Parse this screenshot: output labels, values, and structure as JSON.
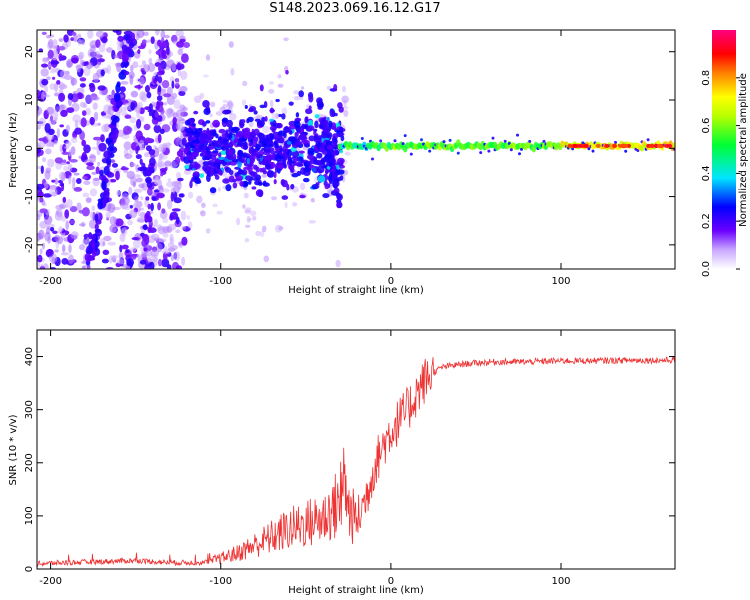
{
  "title": "S148.2023.069.16.12.G17",
  "chart_data": [
    {
      "type": "heatmap",
      "xlabel": "Height of straight line (km)",
      "ylabel": "Frequency (Hz)",
      "xlim": [
        -208,
        167
      ],
      "ylim": [
        -25,
        24.5
      ],
      "xticks": [
        -200,
        -100,
        0,
        100
      ],
      "yticks": [
        -20,
        -10,
        0,
        10,
        20
      ],
      "colorbar": {
        "label": "Normalized spectral amplitude",
        "range": [
          0,
          1
        ],
        "ticks": [
          0.0,
          0.2,
          0.4,
          0.6,
          0.8
        ]
      },
      "features": {
        "dominant_line_hz": 0.5,
        "noise_region_km": [
          -208,
          -120
        ],
        "transition_region_km": [
          -120,
          -25
        ],
        "stable_region_km": [
          -25,
          167
        ]
      }
    },
    {
      "type": "line",
      "xlabel": "Height of straight line (km)",
      "ylabel": "SNR (10 * v/v)",
      "xlim": [
        -208,
        167
      ],
      "ylim": [
        0,
        450
      ],
      "xticks": [
        -200,
        -100,
        0,
        100
      ],
      "yticks": [
        0,
        100,
        200,
        300,
        400
      ],
      "color": "#ee3333",
      "series": [
        {
          "x": [
            -208,
            -190,
            -170,
            -150,
            -130,
            -110,
            -100,
            -90,
            -80,
            -70,
            -60,
            -50,
            -40,
            -32,
            -28,
            -25,
            -20,
            -15,
            -10,
            -5,
            0,
            5,
            10,
            15,
            20,
            25,
            30,
            40,
            50,
            60,
            80,
            100,
            120,
            140,
            160,
            167
          ],
          "y": [
            10,
            12,
            14,
            16,
            12,
            12,
            20,
            30,
            45,
            60,
            75,
            85,
            95,
            120,
            160,
            110,
            90,
            130,
            190,
            230,
            260,
            280,
            300,
            330,
            355,
            370,
            380,
            385,
            388,
            390,
            390,
            392,
            392,
            393,
            393,
            393
          ]
        }
      ]
    }
  ]
}
